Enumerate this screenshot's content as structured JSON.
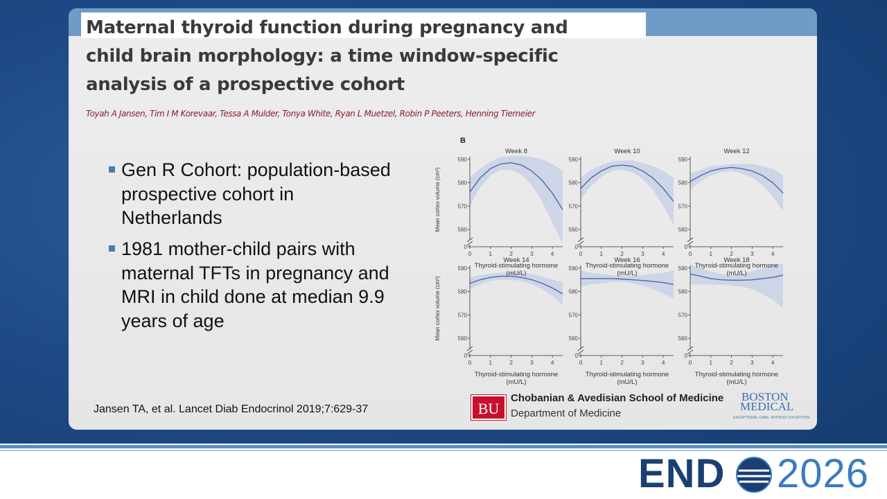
{
  "header": {
    "title": "Maternal thyroid function during pregnancy and child brain morphology: a time window-specific analysis of a prospective cohort",
    "authors": "Toyah A Jansen, Tim I M Korevaar, Tessa A Mulder, Tonya White, Ryan L Muetzel, Robin P Peeters, Henning Tiemeier"
  },
  "bullets": [
    "Gen R Cohort: population-based prospective cohort in Netherlands",
    "1981 mother-child pairs with maternal TFTs in pregnancy and MRI in child done at median 9.9 years of age"
  ],
  "citation": "Jansen TA, et al. Lancet Diab Endocrinol 2019;7:629-37",
  "figure_label": "B",
  "bu_logo": {
    "mark": "BU",
    "school": "Chobanian & Avedisian School of Medicine",
    "department": "Department of Medicine"
  },
  "bmc_logo": {
    "line1": "BOSTON",
    "line2": "MEDICAL",
    "tagline": "EXCEPTIONAL CARE. WITHOUT EXCEPTION."
  },
  "endo_logo": {
    "left": "END",
    "right": "2026"
  },
  "chart_data": [
    {
      "type": "line",
      "title": "Week 8",
      "ylabel": "Mean cortex volume (cm³)",
      "xlabel": "Thyroid-stimulating hormone (mU/L)",
      "x": [
        0,
        0.5,
        1,
        1.5,
        2,
        2.5,
        3,
        3.5,
        4,
        4.5
      ],
      "values": [
        576,
        582,
        586,
        588,
        588.5,
        587.5,
        585,
        581,
        575.5,
        568.5
      ],
      "ci_lower": [
        570,
        578,
        583,
        585.5,
        585.5,
        583.5,
        579,
        572,
        563,
        554
      ],
      "ci_upper": [
        582,
        586,
        589,
        591,
        591.5,
        591.5,
        591,
        590,
        588,
        585
      ],
      "xlim": [
        0,
        4.5
      ],
      "ylim": [
        0,
        592
      ],
      "axis_break": [
        0,
        555
      ],
      "xticks": [
        0,
        1,
        2,
        3,
        4
      ],
      "yticks": [
        0,
        560,
        570,
        580,
        590
      ],
      "color": "#4a6aa3",
      "band_color": "#cdd5e7"
    },
    {
      "type": "line",
      "title": "Week 10",
      "xlabel": "Thyroid-stimulating hormone (mU/L)",
      "x": [
        0,
        0.5,
        1,
        1.5,
        2,
        2.5,
        3,
        3.5,
        4,
        4.5
      ],
      "values": [
        577.5,
        582,
        585,
        587,
        587.5,
        587,
        585,
        582,
        577.5,
        572
      ],
      "ci_lower": [
        573,
        578.5,
        582.5,
        585,
        585.5,
        584.5,
        581.5,
        577,
        570,
        562
      ],
      "ci_upper": [
        582,
        585.5,
        587.5,
        589,
        589.5,
        589.5,
        588.5,
        587,
        585,
        582
      ],
      "xlim": [
        0,
        4.5
      ],
      "ylim": [
        0,
        592
      ],
      "axis_break": [
        0,
        555
      ],
      "xticks": [
        0,
        1,
        2,
        3,
        4
      ],
      "yticks": [
        0,
        560,
        570,
        580,
        590
      ],
      "color": "#4a6aa3",
      "band_color": "#cdd5e7"
    },
    {
      "type": "line",
      "title": "Week 12",
      "xlabel": "Thyroid-stimulating hormone (mU/L)",
      "x": [
        0,
        0.5,
        1,
        1.5,
        2,
        2.5,
        3,
        3.5,
        4,
        4.5
      ],
      "values": [
        580.5,
        583,
        585,
        586,
        586.5,
        586,
        585,
        583,
        580,
        575.5
      ],
      "ci_lower": [
        577,
        580.5,
        583,
        584.5,
        585,
        584,
        582,
        579,
        574,
        568
      ],
      "ci_upper": [
        584,
        585.5,
        587,
        587.5,
        588,
        588,
        588,
        587,
        586,
        583
      ],
      "xlim": [
        0,
        4.5
      ],
      "ylim": [
        0,
        592
      ],
      "axis_break": [
        0,
        555
      ],
      "xticks": [
        0,
        1,
        2,
        3,
        4
      ],
      "yticks": [
        0,
        560,
        570,
        580,
        590
      ],
      "color": "#4a6aa3",
      "band_color": "#cdd5e7"
    },
    {
      "type": "line",
      "title": "Week 14",
      "ylabel": "Mean cortex volume (cm³)",
      "xlabel": "Thyroid-stimulating hormone (mU/L)",
      "x": [
        0,
        0.5,
        1,
        1.5,
        2,
        2.5,
        3,
        3.5,
        4,
        4.5
      ],
      "values": [
        583.5,
        585,
        586,
        586.5,
        586.5,
        586,
        585,
        583.5,
        581.5,
        579
      ],
      "ci_lower": [
        581,
        583,
        584.5,
        585,
        585,
        584.5,
        583,
        581,
        578,
        574
      ],
      "ci_upper": [
        586,
        587,
        587.5,
        588,
        588,
        588,
        587.5,
        586.5,
        585,
        584
      ],
      "xlim": [
        0,
        4.5
      ],
      "ylim": [
        0,
        592
      ],
      "axis_break": [
        0,
        555
      ],
      "xticks": [
        0,
        1,
        2,
        3,
        4
      ],
      "yticks": [
        0,
        560,
        570,
        580,
        590
      ],
      "color": "#4a6aa3",
      "band_color": "#cdd5e7"
    },
    {
      "type": "line",
      "title": "Week 16",
      "xlabel": "Thyroid-stimulating hormone (mU/L)",
      "x": [
        0,
        0.5,
        1,
        1.5,
        2,
        2.5,
        3,
        3.5,
        4,
        4.5
      ],
      "values": [
        585.5,
        585.5,
        585.5,
        585.5,
        585.3,
        585,
        584.7,
        584.3,
        583.8,
        583
      ],
      "ci_lower": [
        582,
        583,
        583.5,
        584,
        584,
        583.5,
        582.5,
        581,
        579,
        577
      ],
      "ci_upper": [
        589,
        588,
        587.5,
        587,
        586.7,
        586.7,
        587,
        587.5,
        588,
        589
      ],
      "xlim": [
        0,
        4.5
      ],
      "ylim": [
        0,
        592
      ],
      "axis_break": [
        0,
        555
      ],
      "xticks": [
        0,
        1,
        2,
        3,
        4
      ],
      "yticks": [
        0,
        560,
        570,
        580,
        590
      ],
      "color": "#4a6aa3",
      "band_color": "#cdd5e7"
    },
    {
      "type": "line",
      "title": "Week 18",
      "xlabel": "Thyroid-stimulating hormone (mU/L)",
      "x": [
        0,
        0.5,
        1,
        1.5,
        2,
        2.5,
        3,
        3.5,
        4,
        4.5
      ],
      "values": [
        587.5,
        586.5,
        585.5,
        585,
        584.8,
        584.8,
        585,
        585.5,
        586,
        587
      ],
      "ci_lower": [
        583,
        583,
        583,
        583,
        582.5,
        582,
        581,
        579,
        576.5,
        573
      ],
      "ci_upper": [
        591.5,
        590,
        588.5,
        587.5,
        587,
        587.5,
        588.5,
        590,
        591.5,
        591.8
      ],
      "xlim": [
        0,
        4.5
      ],
      "ylim": [
        0,
        592
      ],
      "axis_break": [
        0,
        555
      ],
      "xticks": [
        0,
        1,
        2,
        3,
        4
      ],
      "yticks": [
        0,
        560,
        570,
        580,
        590
      ],
      "color": "#4a6aa3",
      "band_color": "#cdd5e7"
    }
  ]
}
